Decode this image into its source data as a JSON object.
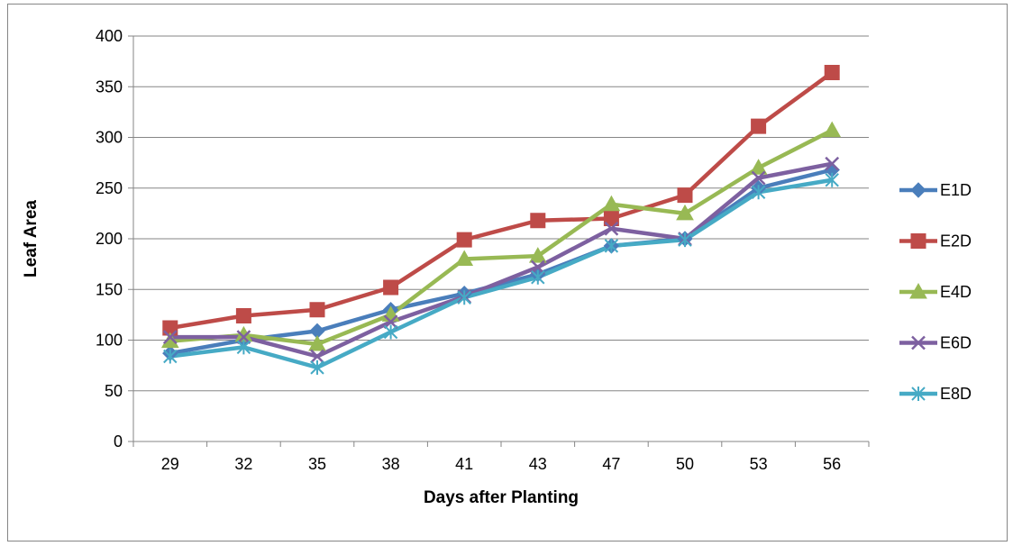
{
  "chart_data": {
    "type": "line",
    "title": "",
    "xlabel": "Days after Planting",
    "ylabel": "Leaf Area",
    "categories": [
      "29",
      "32",
      "35",
      "38",
      "41",
      "43",
      "47",
      "50",
      "53",
      "56"
    ],
    "ylim": [
      0,
      400
    ],
    "yticks": [
      0,
      50,
      100,
      150,
      200,
      250,
      300,
      350,
      400
    ],
    "grid": "horizontal",
    "legend": "right",
    "series": [
      {
        "name": "E1D",
        "color": "#4a7ebb",
        "marker": "diamond",
        "values": [
          87,
          100,
          109,
          130,
          146,
          165,
          193,
          200,
          250,
          268
        ]
      },
      {
        "name": "E2D",
        "color": "#be4b48",
        "marker": "square",
        "values": [
          112,
          124,
          130,
          152,
          199,
          218,
          220,
          243,
          311,
          364
        ]
      },
      {
        "name": "E4D",
        "color": "#98b954",
        "marker": "triangle",
        "values": [
          99,
          105,
          96,
          125,
          180,
          183,
          234,
          225,
          270,
          307
        ]
      },
      {
        "name": "E6D",
        "color": "#7d60a0",
        "marker": "x",
        "values": [
          103,
          103,
          84,
          118,
          143,
          172,
          210,
          200,
          260,
          274
        ]
      },
      {
        "name": "E8D",
        "color": "#46aac5",
        "marker": "asterisk",
        "values": [
          84,
          93,
          73,
          108,
          142,
          162,
          193,
          199,
          246,
          258
        ]
      }
    ]
  }
}
